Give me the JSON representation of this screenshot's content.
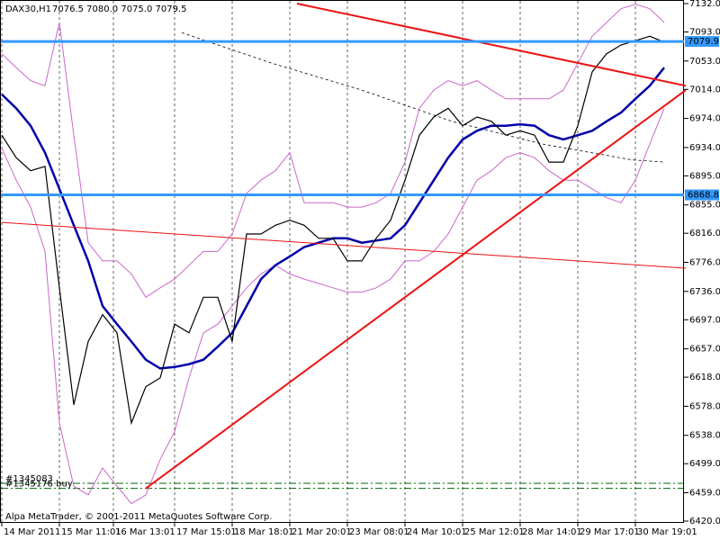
{
  "chart_data": {
    "type": "line",
    "title": "DAX30,H1",
    "subtitle": "7076.5 7080.0 7075.0 7079.5",
    "footer": "Alpa MetaTrader, © 2001-2011 MetaQuotes Software Corp.",
    "x": [
      0,
      4,
      8,
      12,
      16,
      20,
      24,
      28,
      32,
      36,
      40,
      44,
      48,
      52,
      56,
      60,
      64,
      68,
      72,
      76,
      80,
      84,
      88,
      92,
      96,
      100,
      104,
      108,
      112,
      116,
      120,
      124,
      128,
      132,
      136,
      140,
      144,
      148,
      152,
      156,
      160,
      164,
      168,
      172,
      176,
      180,
      184
    ],
    "xlim": [
      0,
      190
    ],
    "xticks": [
      {
        "value": 0,
        "label": "14 Mar 2011"
      },
      {
        "value": 16,
        "label": "15 Mar 11:01"
      },
      {
        "value": 31,
        "label": "16 Mar 13:01"
      },
      {
        "value": 48,
        "label": "17 Mar 15:01"
      },
      {
        "value": 64,
        "label": "18 Mar 18:01"
      },
      {
        "value": 80,
        "label": "21 Mar 20:01"
      },
      {
        "value": 96,
        "label": "23 Mar 08:01"
      },
      {
        "value": 112,
        "label": "24 Mar 10:01"
      },
      {
        "value": 128,
        "label": "25 Mar 12:01"
      },
      {
        "value": 144,
        "label": "28 Mar 14:01"
      },
      {
        "value": 160,
        "label": "29 Mar 17:01"
      },
      {
        "value": 176,
        "label": "30 Mar 19:01"
      }
    ],
    "ylim": [
      6420,
      7132
    ],
    "yticks": [
      {
        "value": 7132,
        "label": "7132.0"
      },
      {
        "value": 7093,
        "label": "7093.0"
      },
      {
        "value": 7053,
        "label": "7053.0"
      },
      {
        "value": 7014,
        "label": "7014.0"
      },
      {
        "value": 6974,
        "label": "6974.0"
      },
      {
        "value": 6934,
        "label": "6934.0"
      },
      {
        "value": 6895,
        "label": "6895.0"
      },
      {
        "value": 6855,
        "label": "6855.0"
      },
      {
        "value": 6816,
        "label": "6816.0"
      },
      {
        "value": 6776,
        "label": "6776.0"
      },
      {
        "value": 6736,
        "label": "6736.0"
      },
      {
        "value": 6697,
        "label": "6697.0"
      },
      {
        "value": 6657,
        "label": "6657.0"
      },
      {
        "value": 6618,
        "label": "6618.0"
      },
      {
        "value": 6578,
        "label": "6578.0"
      },
      {
        "value": 6538,
        "label": "6538.0"
      },
      {
        "value": 6499,
        "label": "6499.0"
      },
      {
        "value": 6459,
        "label": "6459.0"
      },
      {
        "value": 6420,
        "label": "6420.0"
      }
    ],
    "grid": "x",
    "series": [
      {
        "color": "#cc66cc",
        "width": 1,
        "values": [
          7063,
          7044,
          7026,
          7019,
          7106,
          6951,
          6803,
          6778,
          6778,
          6760,
          6728,
          6741,
          6753,
          6772,
          6791,
          6791,
          6815,
          6871,
          6889,
          6902,
          6927,
          6858,
          6858,
          6858,
          6852,
          6852,
          6858,
          6871,
          6914,
          6988,
          7013,
          7026,
          7019,
          7026,
          7013,
          7001,
          7001,
          7001,
          7001,
          7013,
          7050,
          7087,
          7106,
          7125,
          7131,
          7125,
          7106
        ]
      },
      {
        "color": "#cc66cc",
        "width": 1,
        "values": [
          6933,
          6889,
          6852,
          6791,
          6555,
          6468,
          6456,
          6493,
          6468,
          6444,
          6456,
          6505,
          6543,
          6617,
          6679,
          6691,
          6716,
          6741,
          6760,
          6772,
          6760,
          6753,
          6747,
          6741,
          6735,
          6735,
          6741,
          6753,
          6778,
          6778,
          6791,
          6815,
          6852,
          6889,
          6902,
          6920,
          6927,
          6920,
          6902,
          6889,
          6889,
          6877,
          6865,
          6858,
          6889,
          6939,
          6988
        ]
      },
      {
        "color": "#0000aa",
        "width": 2.5,
        "values": [
          7007,
          6988,
          6964,
          6927,
          6877,
          6827,
          6778,
          6716,
          6691,
          6667,
          6642,
          6630,
          6632,
          6636,
          6642,
          6660,
          6679,
          6716,
          6753,
          6772,
          6784,
          6797,
          6803,
          6809,
          6809,
          6803,
          6806,
          6809,
          6827,
          6858,
          6889,
          6920,
          6945,
          6957,
          6964,
          6964,
          6966,
          6964,
          6951,
          6945,
          6951,
          6957,
          6970,
          6982,
          7001,
          7019,
          7044
        ]
      },
      {
        "color": "#000000",
        "width": 1.2,
        "values": [
          6951,
          6920,
          6902,
          6908,
          6741,
          6580,
          6667,
          6704,
          6679,
          6555,
          6605,
          6617,
          6691,
          6679,
          6728,
          6728,
          6667,
          6815,
          6815,
          6827,
          6834,
          6827,
          6809,
          6809,
          6778,
          6778,
          6809,
          6834,
          6889,
          6951,
          6976,
          6988,
          6964,
          6976,
          6970,
          6951,
          6957,
          6951,
          6914,
          6914,
          6964,
          7038,
          7063,
          7075,
          7081,
          7087,
          7079
        ]
      }
    ],
    "dashed_series": {
      "color": "#000000",
      "x": [
        50,
        75,
        100,
        125,
        150,
        175,
        184
      ],
      "values": [
        7092,
        7050,
        7013,
        6970,
        6939,
        6917,
        6914
      ]
    },
    "trendlines": [
      {
        "color": "#ee1111",
        "width": 2,
        "x": [
          82,
          190
        ],
        "values": [
          7132,
          7019
        ]
      },
      {
        "color": "#ee1111",
        "width": 2,
        "x": [
          40,
          190
        ],
        "values": [
          6465,
          7013
        ]
      },
      {
        "color": "#ee1111",
        "width": 1,
        "x": [
          0,
          190
        ],
        "values": [
          6831,
          6768
        ]
      }
    ],
    "levels": [
      {
        "value": 7079.9,
        "color": "#3399ff"
      },
      {
        "value": 6868.8,
        "color": "#3399ff"
      }
    ],
    "orders": [
      {
        "value": 6472,
        "label": "#1345083",
        "color": "#006600"
      },
      {
        "value": 6465,
        "label": "#1345176 buy",
        "color": "#006600"
      }
    ]
  }
}
